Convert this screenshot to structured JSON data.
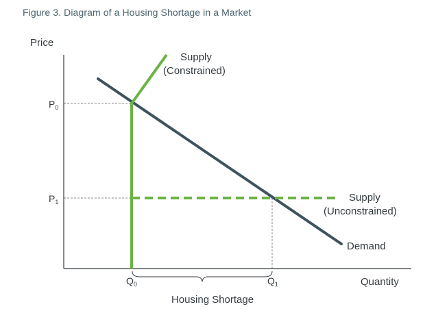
{
  "figure_title": "Figure 3. Diagram of a Housing Shortage in a Market",
  "axes": {
    "y_label": "Price",
    "x_label": "Quantity"
  },
  "ticks": {
    "p0": {
      "main": "P",
      "sub": "0"
    },
    "p1": {
      "main": "P",
      "sub": "1"
    },
    "q0": {
      "main": "Q",
      "sub": "0"
    },
    "q1": {
      "main": "Q",
      "sub": "1"
    }
  },
  "curves": {
    "supply_constrained": {
      "line1": "Supply",
      "line2": "(Constrained)"
    },
    "supply_unconstrained": {
      "line1": "Supply",
      "line2": "(Unconstrained)"
    },
    "demand": "Demand"
  },
  "brace_label": "Housing Shortage",
  "colors": {
    "supply": "#6ab344",
    "demand": "#3d535e",
    "axis": "#333b40",
    "guide": "#8a8a8a",
    "title": "#4a6470"
  }
}
